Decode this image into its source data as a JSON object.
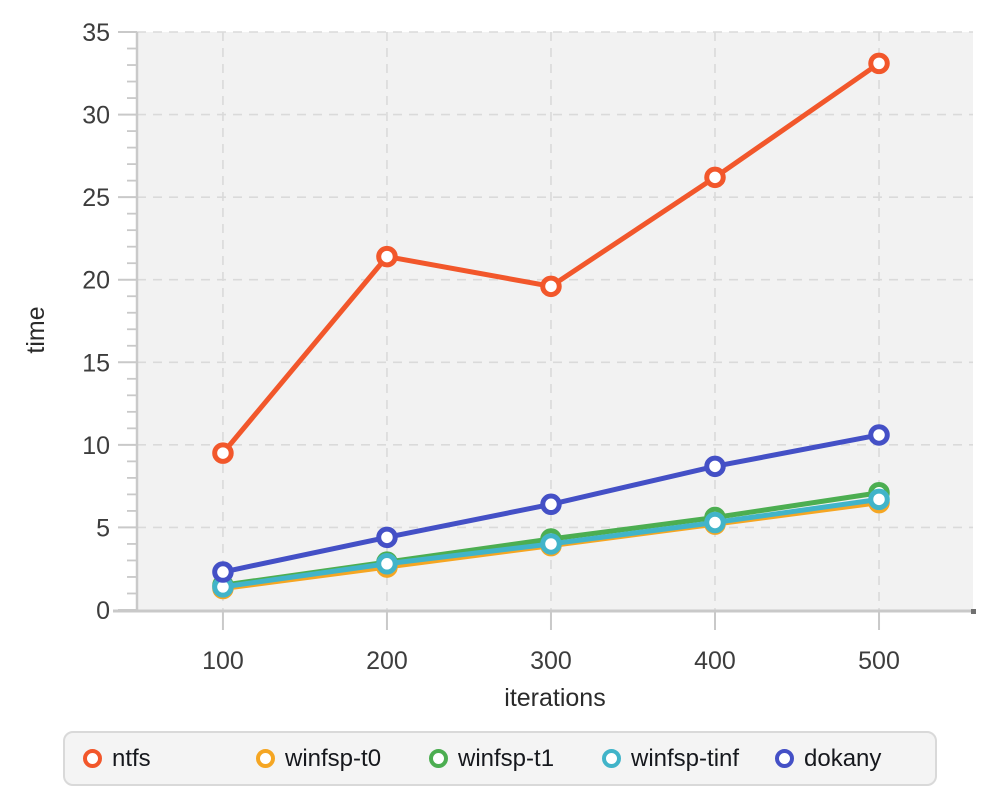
{
  "chart_data": {
    "type": "line",
    "x": [
      100,
      200,
      300,
      400,
      500
    ],
    "series": [
      {
        "name": "ntfs",
        "color": "#f2572b",
        "values": [
          9.5,
          21.4,
          19.6,
          26.2,
          33.1
        ]
      },
      {
        "name": "winfsp-t0",
        "color": "#f5a623",
        "values": [
          1.3,
          2.6,
          3.9,
          5.2,
          6.5
        ]
      },
      {
        "name": "winfsp-t1",
        "color": "#4cae51",
        "values": [
          1.5,
          2.9,
          4.3,
          5.6,
          7.1
        ]
      },
      {
        "name": "winfsp-tinf",
        "color": "#41b4c9",
        "values": [
          1.4,
          2.8,
          4.0,
          5.3,
          6.7
        ]
      },
      {
        "name": "dokany",
        "color": "#4450c6",
        "values": [
          2.3,
          4.4,
          6.4,
          8.7,
          10.6
        ]
      }
    ],
    "title": "",
    "xlabel": "iterations",
    "ylabel": "time",
    "xticks": [
      100,
      200,
      300,
      400,
      500
    ],
    "yticks": [
      0,
      5,
      10,
      15,
      20,
      25,
      30,
      35
    ],
    "minor_ytick_step": 1,
    "xlim": [
      47.6,
      557.3
    ],
    "ylim": [
      0,
      35
    ],
    "grid": "dashed",
    "legend_position": "bottom",
    "style": {
      "plot_bg": "#f2f2f2",
      "grid_color": "#dadada",
      "axis_color": "#c9c9c9",
      "axis_end_cap_color": "#707070",
      "tick_label_color": "#3d3d3d",
      "axis_label_color": "#2a2a2a",
      "marker_fill": "#ffffff"
    }
  }
}
